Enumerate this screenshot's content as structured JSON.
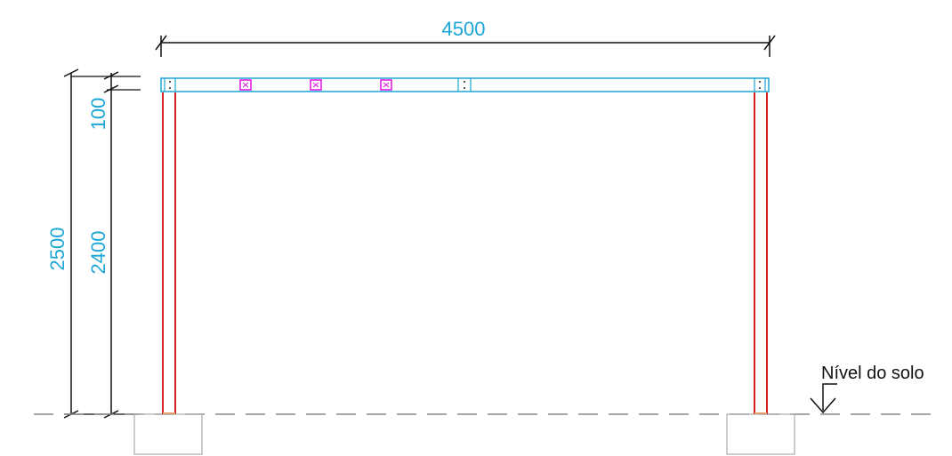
{
  "dimensions": {
    "total_width": "4500",
    "total_height": "2500",
    "beam_height": "100",
    "post_height": "2400"
  },
  "ground": {
    "label": "Nível do solo"
  },
  "colors": {
    "dimension_text": "#1ba6d6",
    "beam": "#1ba6d6",
    "posts": "#d42020",
    "connectors": "#e010e0",
    "dim_lines": "#111111",
    "ground_line": "#888888",
    "footings": "#aaaaaa"
  },
  "icons": {
    "ground_marker": "ground-level-arrow-icon"
  }
}
